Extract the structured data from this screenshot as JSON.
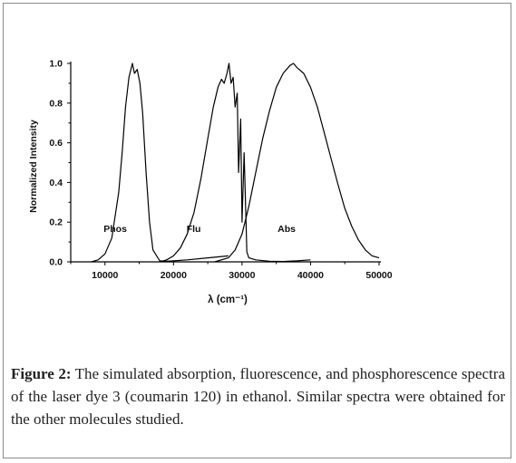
{
  "caption": {
    "label": "Figure 2:",
    "text": " The simulated absorption, fluorescence, and phosphorescence spectra of the laser dye 3 (coumarin 120) in ethanol. Similar spectra were obtained for the other molecules studied."
  },
  "chart_data": {
    "type": "line",
    "title": "",
    "xlabel": "λ (cm⁻¹)",
    "ylabel": "Normalized Intensity",
    "xlim": [
      5000,
      50000
    ],
    "ylim": [
      0.0,
      1.0
    ],
    "x_ticks": [
      10000,
      20000,
      30000,
      40000,
      50000
    ],
    "y_ticks": [
      0.0,
      0.2,
      0.4,
      0.6,
      0.8,
      1.0
    ],
    "x_tick_labels": [
      "10000",
      "20000",
      "30000",
      "40000",
      "50000"
    ],
    "y_tick_labels": [
      "0.0",
      "0.2",
      "0.4",
      "0.6",
      "0.8",
      "1.0"
    ],
    "grid": false,
    "series": [
      {
        "name": "Phos",
        "color": "#000000",
        "x": [
          8000,
          9000,
          10000,
          11000,
          12000,
          12500,
          13000,
          13500,
          14000,
          14300,
          14700,
          15100,
          15500,
          16000,
          16500,
          17000,
          18000,
          19000,
          20000,
          22000,
          25000,
          28000
        ],
        "y": [
          0.0,
          0.01,
          0.04,
          0.12,
          0.35,
          0.55,
          0.78,
          0.93,
          1.0,
          0.95,
          0.97,
          0.9,
          0.75,
          0.45,
          0.2,
          0.06,
          0.005,
          0.003,
          0.005,
          0.01,
          0.02,
          0.03
        ]
      },
      {
        "name": "Flu",
        "color": "#000000",
        "x": [
          18000,
          19000,
          20000,
          21000,
          22000,
          23000,
          24000,
          25000,
          25800,
          26500,
          27000,
          27400,
          27800,
          28100,
          28400,
          28700,
          29000,
          29300,
          29500,
          29800,
          30000,
          30300,
          30700,
          31000,
          32000,
          34000,
          36000,
          38000,
          40000
        ],
        "y": [
          0.0,
          0.01,
          0.03,
          0.07,
          0.14,
          0.25,
          0.42,
          0.62,
          0.78,
          0.88,
          0.92,
          0.9,
          0.95,
          1.0,
          0.9,
          0.93,
          0.78,
          0.85,
          0.45,
          0.72,
          0.2,
          0.55,
          0.05,
          0.02,
          0.01,
          0.003,
          0.002,
          0.005,
          0.01
        ]
      },
      {
        "name": "Abs",
        "color": "#000000",
        "x": [
          26000,
          28000,
          29000,
          30000,
          31000,
          32000,
          33000,
          34000,
          35000,
          36000,
          37000,
          37500,
          38000,
          39000,
          40000,
          41000,
          42000,
          43000,
          44000,
          45000,
          46000,
          47000,
          48000,
          49000,
          50000
        ],
        "y": [
          0.0,
          0.02,
          0.06,
          0.14,
          0.28,
          0.45,
          0.62,
          0.76,
          0.88,
          0.95,
          0.99,
          1.0,
          0.98,
          0.95,
          0.88,
          0.78,
          0.65,
          0.52,
          0.39,
          0.27,
          0.18,
          0.11,
          0.06,
          0.03,
          0.02
        ]
      }
    ],
    "annotations": [
      {
        "text": "Phos",
        "x": 9800,
        "y": 0.15
      },
      {
        "text": "Flu",
        "x": 21900,
        "y": 0.15
      },
      {
        "text": "Abs",
        "x": 35200,
        "y": 0.15
      }
    ]
  }
}
